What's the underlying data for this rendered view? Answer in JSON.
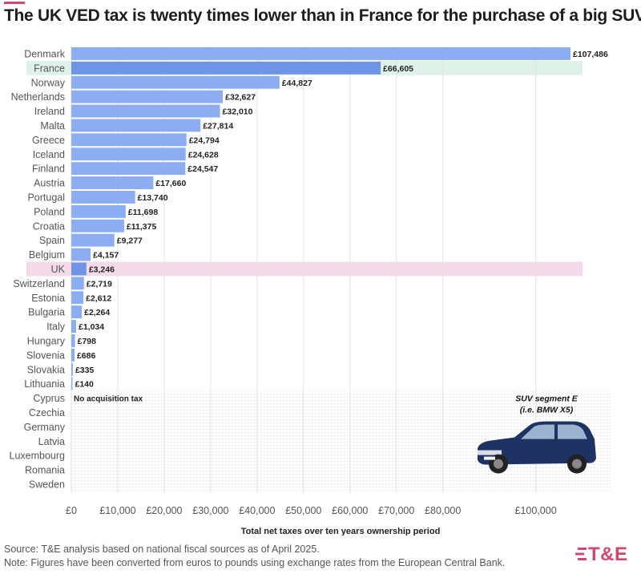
{
  "header": {
    "title": "The UK VED tax is twenty times lower than in France for the purchase of a big SUV"
  },
  "chart_data": {
    "type": "bar",
    "orientation": "horizontal",
    "title": "The UK VED tax is twenty times lower than in France for the purchase of a big SUV",
    "xlabel": "Total net taxes over ten years ownership period",
    "ylabel": "",
    "xlim": [
      0,
      107486
    ],
    "x_ticks": [
      0,
      10000,
      20000,
      30000,
      40000,
      50000,
      60000,
      70000,
      80000,
      100000
    ],
    "x_tick_labels": [
      "£0",
      "£10,000",
      "£20,000",
      "£30,000",
      "£40,000",
      "£50,000",
      "£60,000",
      "£70,000",
      "£80,000",
      "£100,000"
    ],
    "categories": [
      "Denmark",
      "France",
      "Norway",
      "Netherlands",
      "Ireland",
      "Malta",
      "Greece",
      "Iceland",
      "Finland",
      "Austria",
      "Portugal",
      "Poland",
      "Croatia",
      "Spain",
      "Belgium",
      "UK",
      "Switzerland",
      "Estonia",
      "Bulgaria",
      "Italy",
      "Hungary",
      "Slovenia",
      "Slovakia",
      "Lithuania"
    ],
    "values": [
      107486,
      66605,
      44827,
      32627,
      32010,
      27814,
      24794,
      24628,
      24547,
      17660,
      13740,
      11698,
      11375,
      9277,
      4157,
      3246,
      2719,
      2612,
      2264,
      1034,
      798,
      686,
      335,
      140
    ],
    "value_labels": [
      "£107,486",
      "£66,605",
      "£44,827",
      "£32,627",
      "£32,010",
      "£27,814",
      "£24,794",
      "£24,628",
      "£24,547",
      "£17,660",
      "£13,740",
      "£11,698",
      "£11,375",
      "£9,277",
      "£4,157",
      "£3,246",
      "£2,719",
      "£2,612",
      "£2,264",
      "£1,034",
      "£798",
      "£686",
      "£335",
      "£140"
    ],
    "highlighted": {
      "France": "#dff2ea",
      "UK": "#f5dbe9"
    },
    "no_tax_countries": [
      "Cyprus",
      "Czechia",
      "Germany",
      "Latvia",
      "Luxembourg",
      "Romania",
      "Sweden"
    ],
    "no_tax_label": "No acquisition tax",
    "annotation_line1": "SUV segment E",
    "annotation_line2": "(i.e. BMW X5)",
    "grid": true,
    "bar_color": "#8cadf2",
    "highlight_bar_color": "#6f94e6"
  },
  "footer": {
    "source": "Source: T&E analysis based on national fiscal sources as of April 2025.",
    "note": "Note: Figures have been converted from euros to pounds using exchange rates from the European Central Bank."
  },
  "branding": {
    "logo_text": "T&E",
    "logo_icon": "three-bars-icon",
    "accent_color": "#d0476f",
    "title_color": "#1d1d1d"
  }
}
